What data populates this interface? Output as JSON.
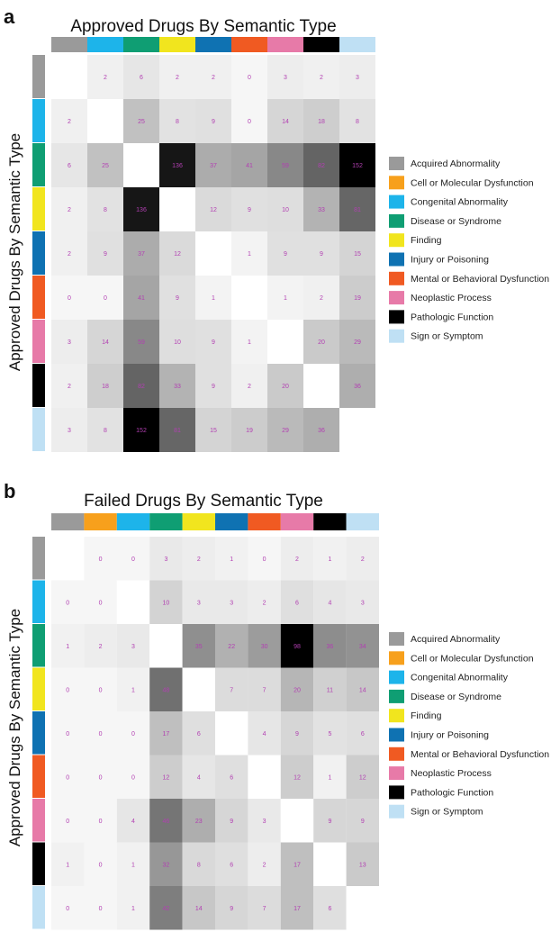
{
  "legend": {
    "items": [
      {
        "label": "Acquired Abnormality",
        "color": "#9a9a9a"
      },
      {
        "label": "Cell or Molecular Dysfunction",
        "color": "#f7a01c"
      },
      {
        "label": "Congenital Abnormality",
        "color": "#1db4ea"
      },
      {
        "label": "Disease or Syndrome",
        "color": "#0f9e73"
      },
      {
        "label": "Finding",
        "color": "#f1e51e"
      },
      {
        "label": "Injury or Poisoning",
        "color": "#0f72b2"
      },
      {
        "label": "Mental or Behavioral Dysfunction",
        "color": "#f05a22"
      },
      {
        "label": "Neoplastic Process",
        "color": "#e77aa8"
      },
      {
        "label": "Pathologic Function",
        "color": "#000000"
      },
      {
        "label": "Sign or Symptom",
        "color": "#bfe0f4"
      }
    ]
  },
  "chart_data": [
    {
      "panel": "a",
      "type": "heatmap",
      "title": "Approved Drugs By Semantic Type",
      "ylabel": "Approved Drugs By Semantic Type",
      "xlabel": "",
      "categories": [
        "Acquired Abnormality",
        "Congenital Abnormality",
        "Disease or Syndrome",
        "Finding",
        "Injury or Poisoning",
        "Mental or Behavioral Dysfunction",
        "Neoplastic Process",
        "Pathologic Function",
        "Sign or Symptom"
      ],
      "max": 152,
      "values": [
        [
          null,
          2,
          6,
          2,
          2,
          0,
          3,
          2,
          3
        ],
        [
          2,
          null,
          25,
          8,
          9,
          0,
          14,
          18,
          8
        ],
        [
          6,
          25,
          null,
          136,
          37,
          41,
          59,
          82,
          152
        ],
        [
          2,
          8,
          136,
          null,
          12,
          9,
          10,
          33,
          81
        ],
        [
          2,
          9,
          37,
          12,
          null,
          1,
          9,
          9,
          15
        ],
        [
          0,
          0,
          41,
          9,
          1,
          null,
          1,
          2,
          19
        ],
        [
          3,
          14,
          59,
          10,
          9,
          1,
          null,
          20,
          29
        ],
        [
          2,
          18,
          82,
          33,
          9,
          2,
          20,
          null,
          36
        ],
        [
          3,
          8,
          152,
          81,
          15,
          19,
          29,
          36,
          null
        ]
      ]
    },
    {
      "panel": "b",
      "type": "heatmap",
      "title": "Failed Drugs By Semantic Type",
      "ylabel": "Approved Drugs By Semantic Type",
      "xlabel": "",
      "row_categories": [
        "Acquired Abnormality",
        "Congenital Abnormality",
        "Disease or Syndrome",
        "Finding",
        "Injury or Poisoning",
        "Mental or Behavioral Dysfunction",
        "Neoplastic Process",
        "Pathologic Function",
        "Sign or Symptom"
      ],
      "col_categories": [
        "Acquired Abnormality",
        "Cell or Molecular Dysfunction",
        "Congenital Abnormality",
        "Disease or Syndrome",
        "Finding",
        "Injury or Poisoning",
        "Mental or Behavioral Dysfunction",
        "Neoplastic Process",
        "Pathologic Function",
        "Sign or Symptom"
      ],
      "max": 98,
      "values": [
        [
          null,
          0,
          0,
          3,
          2,
          1,
          0,
          2,
          1,
          2
        ],
        [
          0,
          0,
          null,
          10,
          3,
          3,
          2,
          6,
          4,
          3
        ],
        [
          1,
          2,
          3,
          null,
          35,
          22,
          30,
          98,
          36,
          34
        ],
        [
          0,
          0,
          1,
          48,
          null,
          7,
          7,
          20,
          11,
          14
        ],
        [
          0,
          0,
          0,
          17,
          6,
          null,
          4,
          9,
          5,
          6
        ],
        [
          0,
          0,
          0,
          12,
          4,
          6,
          null,
          12,
          1,
          12
        ],
        [
          0,
          0,
          4,
          46,
          23,
          9,
          3,
          null,
          9,
          9
        ],
        [
          1,
          0,
          1,
          32,
          8,
          6,
          2,
          17,
          null,
          13
        ],
        [
          0,
          0,
          1,
          42,
          14,
          9,
          7,
          17,
          6,
          null
        ]
      ]
    }
  ]
}
